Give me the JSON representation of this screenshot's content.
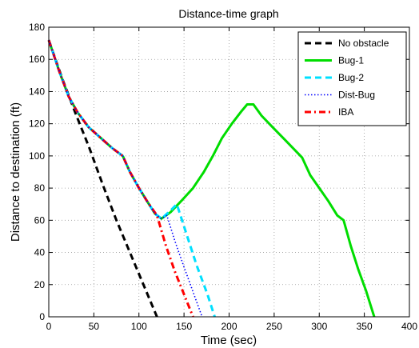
{
  "chart_data": {
    "type": "line",
    "title": "Distance-time graph",
    "xlabel": "Time (sec)",
    "ylabel": "Distance to destination (ft)",
    "xlim": [
      0,
      400
    ],
    "ylim": [
      0,
      180
    ],
    "xticks": [
      0,
      50,
      100,
      150,
      200,
      250,
      300,
      350,
      400
    ],
    "yticks": [
      0,
      20,
      40,
      60,
      80,
      100,
      120,
      140,
      160,
      180
    ],
    "grid": true,
    "legend_position": "top-right",
    "series": [
      {
        "name": "No obstacle",
        "color": "#000000",
        "style": "dashed",
        "points": [
          [
            0,
            172
          ],
          [
            15,
            148
          ],
          [
            30,
            126
          ],
          [
            45,
            105
          ],
          [
            60,
            82
          ],
          [
            75,
            60
          ],
          [
            90,
            40
          ],
          [
            105,
            20
          ],
          [
            120,
            0
          ]
        ]
      },
      {
        "name": "Bug-1",
        "color": "#00dd00",
        "style": "solid",
        "points": [
          [
            0,
            172
          ],
          [
            12,
            152
          ],
          [
            22,
            137
          ],
          [
            32,
            127
          ],
          [
            44,
            118
          ],
          [
            58,
            111
          ],
          [
            70,
            105
          ],
          [
            82,
            100
          ],
          [
            90,
            90
          ],
          [
            100,
            80
          ],
          [
            110,
            71
          ],
          [
            118,
            64
          ],
          [
            125,
            61
          ],
          [
            135,
            65
          ],
          [
            147,
            72
          ],
          [
            160,
            80
          ],
          [
            172,
            90
          ],
          [
            182,
            100
          ],
          [
            192,
            111
          ],
          [
            203,
            120
          ],
          [
            214,
            128
          ],
          [
            220,
            132
          ],
          [
            227,
            132
          ],
          [
            236,
            125
          ],
          [
            248,
            118
          ],
          [
            262,
            110
          ],
          [
            281,
            99
          ],
          [
            290,
            88
          ],
          [
            300,
            80
          ],
          [
            310,
            72
          ],
          [
            320,
            63
          ],
          [
            327,
            60
          ],
          [
            335,
            44
          ],
          [
            343,
            30
          ],
          [
            352,
            16
          ],
          [
            361,
            0
          ]
        ]
      },
      {
        "name": "Bug-2",
        "color": "#00e0ff",
        "style": "dashed",
        "points": [
          [
            0,
            172
          ],
          [
            12,
            152
          ],
          [
            22,
            137
          ],
          [
            32,
            127
          ],
          [
            44,
            118
          ],
          [
            58,
            111
          ],
          [
            70,
            105
          ],
          [
            82,
            100
          ],
          [
            90,
            90
          ],
          [
            100,
            80
          ],
          [
            110,
            71
          ],
          [
            118,
            64
          ],
          [
            125,
            61
          ],
          [
            135,
            66
          ],
          [
            142,
            70
          ],
          [
            153,
            51
          ],
          [
            164,
            32
          ],
          [
            176,
            14
          ],
          [
            184,
            0
          ]
        ]
      },
      {
        "name": "Dist-Bug",
        "color": "#0000ff",
        "style": "dotted",
        "points": [
          [
            0,
            172
          ],
          [
            12,
            152
          ],
          [
            22,
            137
          ],
          [
            32,
            127
          ],
          [
            44,
            118
          ],
          [
            58,
            111
          ],
          [
            70,
            105
          ],
          [
            82,
            100
          ],
          [
            90,
            90
          ],
          [
            100,
            80
          ],
          [
            110,
            71
          ],
          [
            118,
            64
          ],
          [
            125,
            61
          ],
          [
            131,
            63
          ],
          [
            140,
            47
          ],
          [
            150,
            31
          ],
          [
            161,
            14
          ],
          [
            170,
            0
          ]
        ]
      },
      {
        "name": "IBA",
        "color": "#ff0000",
        "style": "dashdot",
        "points": [
          [
            0,
            172
          ],
          [
            12,
            152
          ],
          [
            22,
            137
          ],
          [
            32,
            127
          ],
          [
            44,
            118
          ],
          [
            58,
            111
          ],
          [
            70,
            105
          ],
          [
            82,
            100
          ],
          [
            90,
            90
          ],
          [
            100,
            80
          ],
          [
            110,
            71
          ],
          [
            120,
            63
          ],
          [
            130,
            44
          ],
          [
            140,
            28
          ],
          [
            150,
            14
          ],
          [
            160,
            0
          ]
        ]
      }
    ]
  }
}
